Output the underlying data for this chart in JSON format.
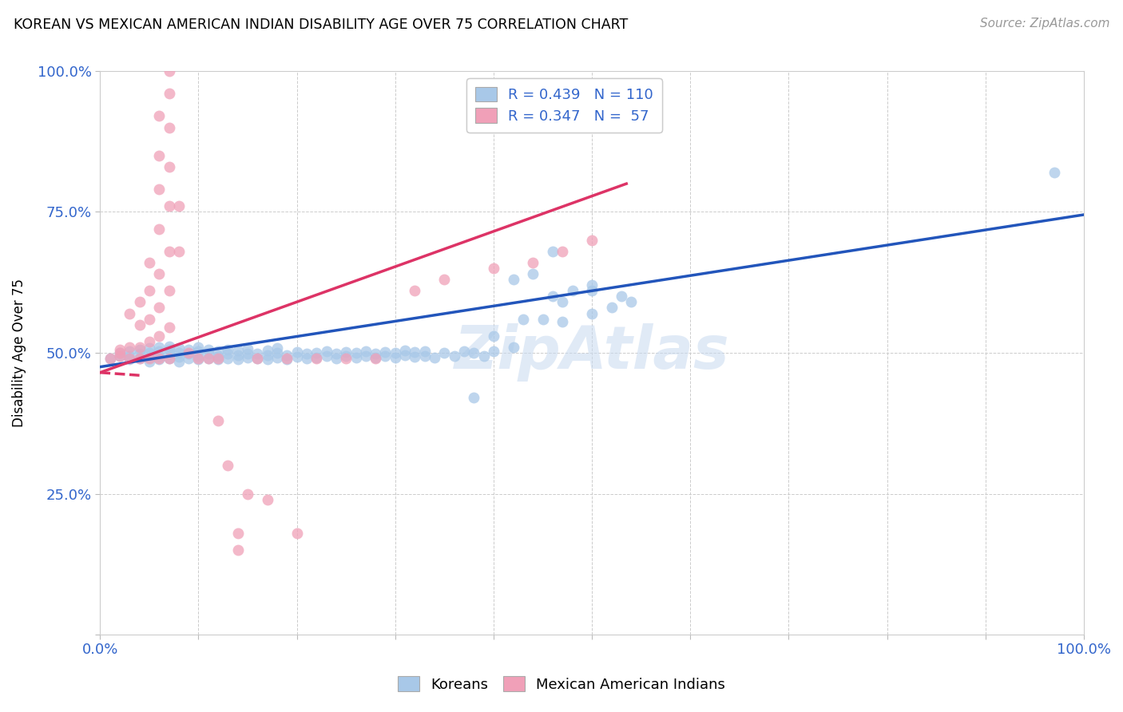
{
  "title": "KOREAN VS MEXICAN AMERICAN INDIAN DISABILITY AGE OVER 75 CORRELATION CHART",
  "source": "Source: ZipAtlas.com",
  "ylabel": "Disability Age Over 75",
  "R_korean": 0.439,
  "N_korean": 110,
  "R_mexican": 0.347,
  "N_mexican": 57,
  "korean_color": "#a8c8e8",
  "mexican_color": "#f0a0b8",
  "korean_line_color": "#2255bb",
  "mexican_line_color": "#dd3366",
  "xlim": [
    0.0,
    1.0
  ],
  "ylim": [
    0.0,
    1.0
  ],
  "xticks": [
    0.0,
    0.1,
    0.2,
    0.3,
    0.4,
    0.5,
    0.6,
    0.7,
    0.8,
    0.9,
    1.0
  ],
  "yticks": [
    0.0,
    0.25,
    0.5,
    0.75,
    1.0
  ],
  "grid_color": "#cccccc",
  "background_color": "#ffffff",
  "korean_points": [
    [
      0.01,
      0.49
    ],
    [
      0.02,
      0.495
    ],
    [
      0.02,
      0.5
    ],
    [
      0.03,
      0.488
    ],
    [
      0.03,
      0.495
    ],
    [
      0.03,
      0.503
    ],
    [
      0.04,
      0.49
    ],
    [
      0.04,
      0.498
    ],
    [
      0.04,
      0.505
    ],
    [
      0.05,
      0.485
    ],
    [
      0.05,
      0.492
    ],
    [
      0.05,
      0.5
    ],
    [
      0.05,
      0.508
    ],
    [
      0.06,
      0.488
    ],
    [
      0.06,
      0.495
    ],
    [
      0.06,
      0.503
    ],
    [
      0.06,
      0.51
    ],
    [
      0.07,
      0.49
    ],
    [
      0.07,
      0.498
    ],
    [
      0.07,
      0.505
    ],
    [
      0.07,
      0.512
    ],
    [
      0.08,
      0.485
    ],
    [
      0.08,
      0.493
    ],
    [
      0.08,
      0.5
    ],
    [
      0.08,
      0.508
    ],
    [
      0.09,
      0.49
    ],
    [
      0.09,
      0.498
    ],
    [
      0.09,
      0.505
    ],
    [
      0.1,
      0.488
    ],
    [
      0.1,
      0.495
    ],
    [
      0.1,
      0.503
    ],
    [
      0.1,
      0.51
    ],
    [
      0.11,
      0.49
    ],
    [
      0.11,
      0.498
    ],
    [
      0.11,
      0.505
    ],
    [
      0.12,
      0.488
    ],
    [
      0.12,
      0.495
    ],
    [
      0.12,
      0.503
    ],
    [
      0.13,
      0.49
    ],
    [
      0.13,
      0.498
    ],
    [
      0.13,
      0.506
    ],
    [
      0.14,
      0.488
    ],
    [
      0.14,
      0.496
    ],
    [
      0.14,
      0.504
    ],
    [
      0.15,
      0.491
    ],
    [
      0.15,
      0.499
    ],
    [
      0.15,
      0.507
    ],
    [
      0.16,
      0.49
    ],
    [
      0.16,
      0.498
    ],
    [
      0.17,
      0.488
    ],
    [
      0.17,
      0.496
    ],
    [
      0.17,
      0.504
    ],
    [
      0.18,
      0.492
    ],
    [
      0.18,
      0.5
    ],
    [
      0.18,
      0.508
    ],
    [
      0.19,
      0.488
    ],
    [
      0.19,
      0.496
    ],
    [
      0.2,
      0.493
    ],
    [
      0.2,
      0.501
    ],
    [
      0.21,
      0.49
    ],
    [
      0.21,
      0.498
    ],
    [
      0.22,
      0.492
    ],
    [
      0.22,
      0.5
    ],
    [
      0.23,
      0.495
    ],
    [
      0.23,
      0.503
    ],
    [
      0.24,
      0.49
    ],
    [
      0.24,
      0.498
    ],
    [
      0.25,
      0.494
    ],
    [
      0.25,
      0.502
    ],
    [
      0.26,
      0.492
    ],
    [
      0.26,
      0.5
    ],
    [
      0.27,
      0.495
    ],
    [
      0.27,
      0.503
    ],
    [
      0.28,
      0.491
    ],
    [
      0.28,
      0.499
    ],
    [
      0.29,
      0.494
    ],
    [
      0.29,
      0.502
    ],
    [
      0.3,
      0.492
    ],
    [
      0.3,
      0.5
    ],
    [
      0.31,
      0.496
    ],
    [
      0.31,
      0.504
    ],
    [
      0.32,
      0.493
    ],
    [
      0.32,
      0.501
    ],
    [
      0.33,
      0.495
    ],
    [
      0.33,
      0.503
    ],
    [
      0.34,
      0.492
    ],
    [
      0.35,
      0.5
    ],
    [
      0.36,
      0.495
    ],
    [
      0.37,
      0.503
    ],
    [
      0.38,
      0.42
    ],
    [
      0.38,
      0.5
    ],
    [
      0.39,
      0.495
    ],
    [
      0.4,
      0.503
    ],
    [
      0.4,
      0.53
    ],
    [
      0.42,
      0.51
    ],
    [
      0.42,
      0.63
    ],
    [
      0.43,
      0.56
    ],
    [
      0.44,
      0.64
    ],
    [
      0.45,
      0.56
    ],
    [
      0.46,
      0.6
    ],
    [
      0.46,
      0.68
    ],
    [
      0.47,
      0.555
    ],
    [
      0.47,
      0.59
    ],
    [
      0.48,
      0.61
    ],
    [
      0.5,
      0.57
    ],
    [
      0.5,
      0.61
    ],
    [
      0.5,
      0.62
    ],
    [
      0.52,
      0.58
    ],
    [
      0.53,
      0.6
    ],
    [
      0.54,
      0.59
    ],
    [
      0.97,
      0.82
    ]
  ],
  "mexican_points": [
    [
      0.01,
      0.49
    ],
    [
      0.02,
      0.495
    ],
    [
      0.02,
      0.5
    ],
    [
      0.02,
      0.505
    ],
    [
      0.03,
      0.49
    ],
    [
      0.03,
      0.51
    ],
    [
      0.03,
      0.57
    ],
    [
      0.04,
      0.49
    ],
    [
      0.04,
      0.51
    ],
    [
      0.04,
      0.55
    ],
    [
      0.04,
      0.59
    ],
    [
      0.05,
      0.49
    ],
    [
      0.05,
      0.52
    ],
    [
      0.05,
      0.56
    ],
    [
      0.05,
      0.61
    ],
    [
      0.05,
      0.66
    ],
    [
      0.06,
      0.49
    ],
    [
      0.06,
      0.53
    ],
    [
      0.06,
      0.58
    ],
    [
      0.06,
      0.64
    ],
    [
      0.06,
      0.72
    ],
    [
      0.06,
      0.79
    ],
    [
      0.06,
      0.85
    ],
    [
      0.06,
      0.92
    ],
    [
      0.07,
      0.49
    ],
    [
      0.07,
      0.545
    ],
    [
      0.07,
      0.61
    ],
    [
      0.07,
      0.68
    ],
    [
      0.07,
      0.76
    ],
    [
      0.07,
      0.83
    ],
    [
      0.07,
      0.9
    ],
    [
      0.07,
      0.96
    ],
    [
      0.07,
      1.0
    ],
    [
      0.08,
      0.68
    ],
    [
      0.08,
      0.76
    ],
    [
      0.09,
      0.5
    ],
    [
      0.1,
      0.49
    ],
    [
      0.11,
      0.49
    ],
    [
      0.12,
      0.38
    ],
    [
      0.12,
      0.49
    ],
    [
      0.13,
      0.3
    ],
    [
      0.14,
      0.18
    ],
    [
      0.14,
      0.15
    ],
    [
      0.15,
      0.25
    ],
    [
      0.16,
      0.49
    ],
    [
      0.17,
      0.24
    ],
    [
      0.19,
      0.49
    ],
    [
      0.2,
      0.18
    ],
    [
      0.22,
      0.49
    ],
    [
      0.25,
      0.49
    ],
    [
      0.28,
      0.49
    ],
    [
      0.32,
      0.61
    ],
    [
      0.35,
      0.63
    ],
    [
      0.4,
      0.65
    ],
    [
      0.44,
      0.66
    ],
    [
      0.47,
      0.68
    ],
    [
      0.5,
      0.7
    ]
  ]
}
